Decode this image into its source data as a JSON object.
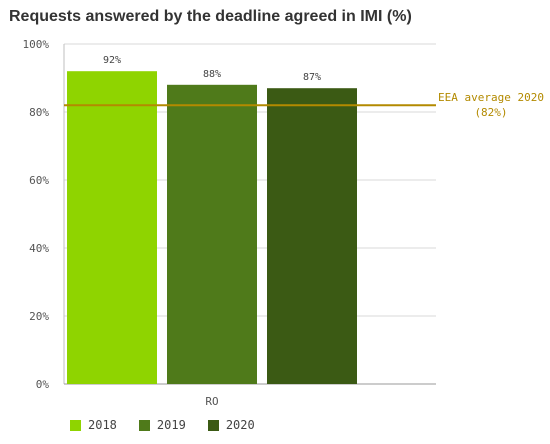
{
  "chart_data": {
    "type": "bar",
    "title": "Requests answered by the deadline agreed in IMI (%)",
    "categories": [
      "RO"
    ],
    "series": [
      {
        "name": "2018",
        "values": [
          92
        ],
        "color": "#8fd400"
      },
      {
        "name": "2019",
        "values": [
          88
        ],
        "color": "#4f7a1a"
      },
      {
        "name": "2020",
        "values": [
          87
        ],
        "color": "#3b5a14"
      }
    ],
    "data_labels": [
      "92%",
      "88%",
      "87%"
    ],
    "ylim": [
      0,
      100
    ],
    "yticks": [
      0,
      20,
      40,
      60,
      80,
      100
    ],
    "ytick_labels": [
      "0%",
      "20%",
      "40%",
      "60%",
      "80%",
      "100%"
    ],
    "grid": true,
    "legend_position": "bottom-left",
    "reference_line": {
      "value": 82,
      "label_line1": "EEA average 2020",
      "label_line2": "(82%)",
      "color": "#b38a00"
    }
  }
}
